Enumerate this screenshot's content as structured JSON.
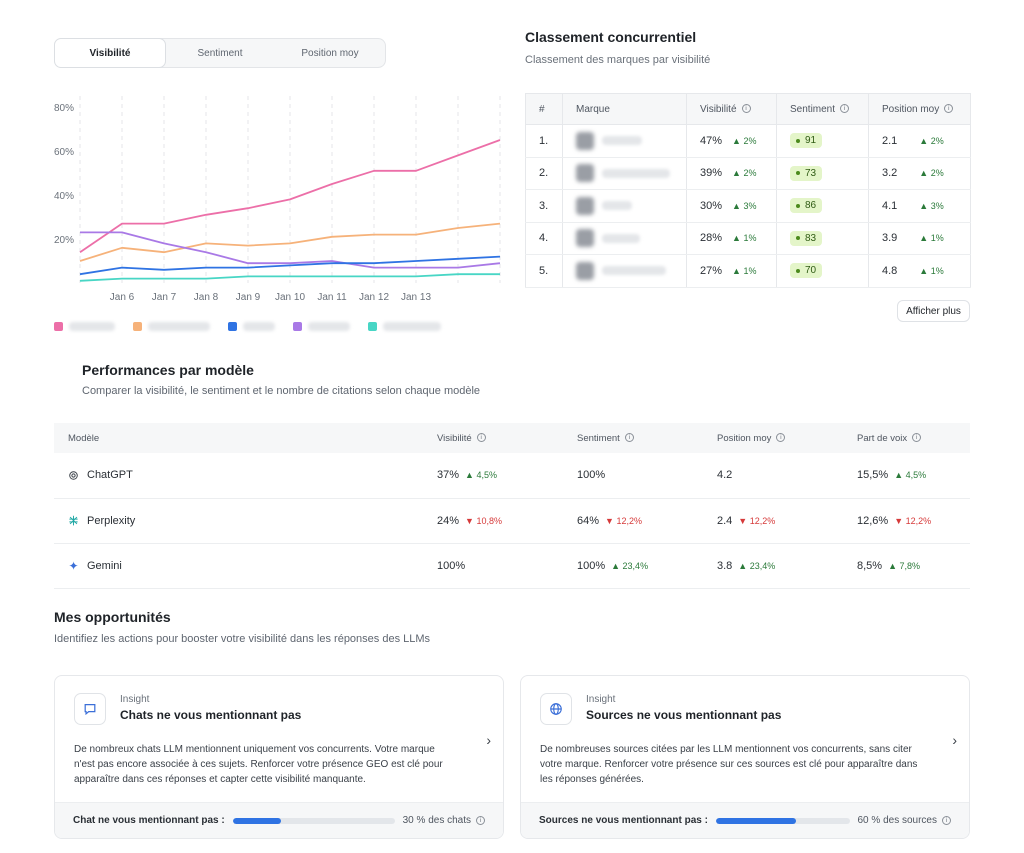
{
  "tabs": [
    "Visibilité",
    "Sentiment",
    "Position moy"
  ],
  "chart_data": {
    "type": "line",
    "categories": [
      "Jan 6",
      "Jan 7",
      "Jan 8",
      "Jan 9",
      "Jan 10",
      "Jan 11",
      "Jan 12",
      "Jan 13"
    ],
    "y_ticks": [
      "80%",
      "60%",
      "40%",
      "20%"
    ],
    "ylim": [
      0,
      85
    ],
    "grid": "dashed vertical",
    "series": [
      {
        "color": "#ec6fa8",
        "x": [
          0,
          1,
          2,
          3,
          4,
          5,
          6,
          7,
          8,
          9,
          10
        ],
        "values": [
          14,
          27,
          27,
          31,
          34,
          38,
          45,
          51,
          51,
          58,
          65
        ]
      },
      {
        "color": "#f6b27a",
        "x": [
          0,
          1,
          2,
          3,
          4,
          5,
          6,
          7,
          8,
          9,
          10
        ],
        "values": [
          10,
          16,
          14,
          18,
          17,
          18,
          21,
          22,
          22,
          25,
          27
        ]
      },
      {
        "color": "#a979e6",
        "x": [
          0,
          1,
          2,
          3,
          4,
          5,
          6,
          7,
          8,
          9,
          10
        ],
        "values": [
          23,
          23,
          18,
          14,
          9,
          9,
          10,
          7,
          7,
          7,
          9
        ]
      },
      {
        "color": "#2f73e3",
        "x": [
          0,
          1,
          2,
          3,
          4,
          5,
          6,
          7,
          8,
          9,
          10
        ],
        "values": [
          4,
          7,
          6,
          7,
          7,
          8,
          9,
          9,
          10,
          11,
          12
        ]
      },
      {
        "color": "#48d6c5",
        "x": [
          0,
          1,
          2,
          3,
          4,
          5,
          6,
          7,
          8,
          9,
          10
        ],
        "values": [
          1,
          2,
          2,
          2,
          3,
          3,
          3,
          3,
          3,
          4,
          4
        ]
      }
    ]
  },
  "ranking": {
    "title": "Classement concurrentiel",
    "subtitle": "Classement des marques par visibilité",
    "headers": [
      "#",
      "Marque",
      "Visibilité",
      "Sentiment",
      "Position moy"
    ],
    "rows": [
      {
        "rank": "1.",
        "vis": "47%",
        "vis_d": "▲ 2%",
        "sent": "91",
        "pos": "2.1",
        "pos_d": "▲ 2%"
      },
      {
        "rank": "2.",
        "vis": "39%",
        "vis_d": "▲ 2%",
        "sent": "73",
        "pos": "3.2",
        "pos_d": "▲ 2%"
      },
      {
        "rank": "3.",
        "vis": "30%",
        "vis_d": "▲ 3%",
        "sent": "86",
        "pos": "4.1",
        "pos_d": "▲ 3%"
      },
      {
        "rank": "4.",
        "vis": "28%",
        "vis_d": "▲ 1%",
        "sent": "83",
        "pos": "3.9",
        "pos_d": "▲ 1%"
      },
      {
        "rank": "5.",
        "vis": "27%",
        "vis_d": "▲ 1%",
        "sent": "70",
        "pos": "4.8",
        "pos_d": "▲ 1%"
      }
    ],
    "more": "Afficher plus"
  },
  "models": {
    "title": "Performances par modèle",
    "subtitle": "Comparer la visibilité, le sentiment et le nombre de citations selon chaque modèle",
    "headers": [
      "Modèle",
      "Visibilité",
      "Sentiment",
      "Position moy",
      "Part de voix"
    ],
    "rows": [
      {
        "name": "ChatGPT",
        "vis": "37%",
        "vis_d": "▲ 4,5%",
        "sent": "100%",
        "sent_d": "",
        "pos": "4.2",
        "pos_d": "",
        "pdv": "15,5%",
        "pdv_d": "▲ 4,5%"
      },
      {
        "name": "Perplexity",
        "vis": "24%",
        "vis_d": "▼ 10,8%",
        "sent": "64%",
        "sent_d": "▼ 12,2%",
        "pos": "2.4",
        "pos_d": "▼ 12,2%",
        "pdv": "12,6%",
        "pdv_d": "▼ 12,2%"
      },
      {
        "name": "Gemini",
        "vis": "100%",
        "vis_d": "",
        "sent": "100%",
        "sent_d": "▲ 23,4%",
        "pos": "3.8",
        "pos_d": "▲ 23,4%",
        "pdv": "8,5%",
        "pdv_d": "▲ 7,8%"
      }
    ]
  },
  "opportunities": {
    "title": "Mes opportunités",
    "subtitle": "Identifiez les actions pour booster votre visibilité dans les réponses des LLMs",
    "cards": [
      {
        "kicker": "Insight",
        "head": "Chats ne vous mentionnant pas",
        "body": "De nombreux chats LLM mentionnent uniquement vos concurrents. Votre marque n'est pas encore associée à ces sujets. Renforcer votre présence GEO est clé pour apparaître dans ces réponses et capter cette visibilité manquante.",
        "foot_label": "Chat ne vous mentionnant pas :",
        "progress": 0.3,
        "foot_value": "30 % des chats"
      },
      {
        "kicker": "Insight",
        "head": "Sources ne vous mentionnant pas",
        "body": "De nombreuses sources citées par les LLM mentionnent vos concurrents, sans citer votre marque. Renforcer votre présence sur ces sources est clé pour apparaître dans les réponses générées.",
        "foot_label": "Sources ne vous mentionnant pas :",
        "progress": 0.6,
        "foot_value": "60 % des sources"
      }
    ]
  }
}
